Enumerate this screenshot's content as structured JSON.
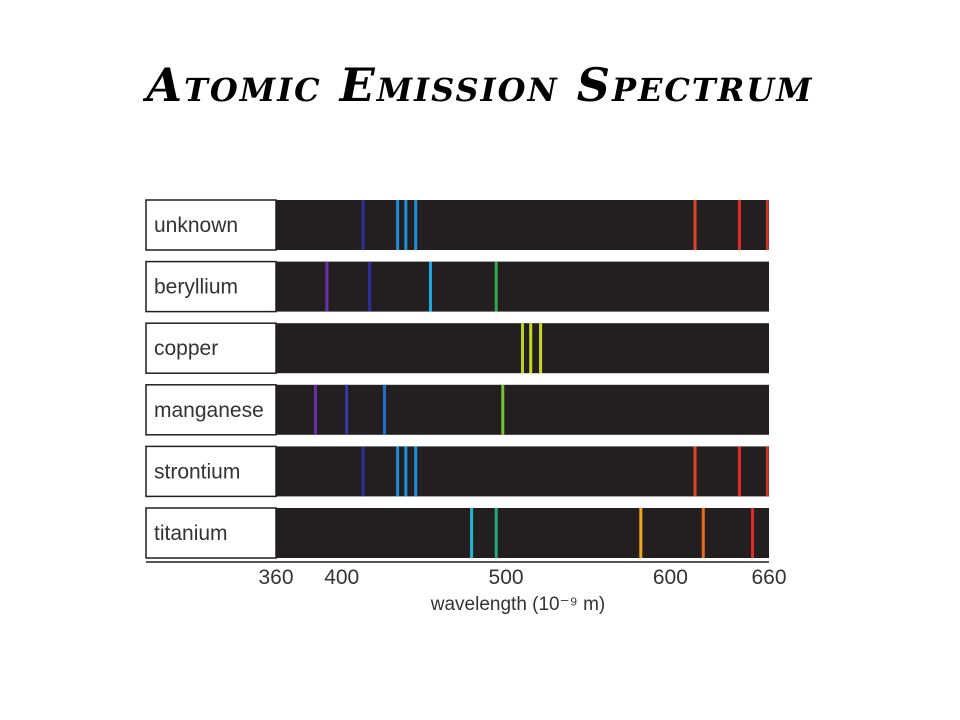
{
  "slide": {
    "title": "Atomic Emission Spectrum"
  },
  "chart_data": {
    "type": "emission-spectrum",
    "xlabel": "wavelength (10⁻⁹ m)",
    "xlim": [
      360,
      660
    ],
    "ticks": [
      360,
      400,
      500,
      600,
      660
    ],
    "background_color": "#231f20",
    "rows": [
      {
        "name": "unknown",
        "lines": [
          {
            "wl": 413,
            "color": "#2e2f9e"
          },
          {
            "wl": 434,
            "color": "#1e8fd8"
          },
          {
            "wl": 439,
            "color": "#1e8fd8"
          },
          {
            "wl": 445,
            "color": "#1e8fd8"
          },
          {
            "wl": 615,
            "color": "#e0452a"
          },
          {
            "wl": 642,
            "color": "#e52a2a"
          },
          {
            "wl": 659,
            "color": "#c8342a"
          }
        ]
      },
      {
        "name": "beryllium",
        "lines": [
          {
            "wl": 391,
            "color": "#6a2fa8"
          },
          {
            "wl": 417,
            "color": "#2e2f9e"
          },
          {
            "wl": 454,
            "color": "#1ea6e0"
          },
          {
            "wl": 494,
            "color": "#2fa84a"
          }
        ]
      },
      {
        "name": "copper",
        "lines": [
          {
            "wl": 510,
            "color": "#b8d020"
          },
          {
            "wl": 515,
            "color": "#c8d81e"
          },
          {
            "wl": 521,
            "color": "#c8d81e"
          }
        ]
      },
      {
        "name": "manganese",
        "lines": [
          {
            "wl": 384,
            "color": "#6a2fa8"
          },
          {
            "wl": 403,
            "color": "#3a38a8"
          },
          {
            "wl": 426,
            "color": "#1e6fd0"
          },
          {
            "wl": 498,
            "color": "#7ac23a"
          }
        ]
      },
      {
        "name": "strontium",
        "lines": [
          {
            "wl": 413,
            "color": "#2e2f9e"
          },
          {
            "wl": 434,
            "color": "#1e8fd8"
          },
          {
            "wl": 439,
            "color": "#1e8fd8"
          },
          {
            "wl": 445,
            "color": "#1e8fd8"
          },
          {
            "wl": 615,
            "color": "#e0452a"
          },
          {
            "wl": 642,
            "color": "#e52a2a"
          },
          {
            "wl": 659,
            "color": "#c8342a"
          }
        ]
      },
      {
        "name": "titanium",
        "lines": [
          {
            "wl": 479,
            "color": "#1eb8d8"
          },
          {
            "wl": 494,
            "color": "#22a878"
          },
          {
            "wl": 582,
            "color": "#f0a818"
          },
          {
            "wl": 620,
            "color": "#e86a22"
          },
          {
            "wl": 650,
            "color": "#e52a2a"
          }
        ]
      }
    ]
  }
}
